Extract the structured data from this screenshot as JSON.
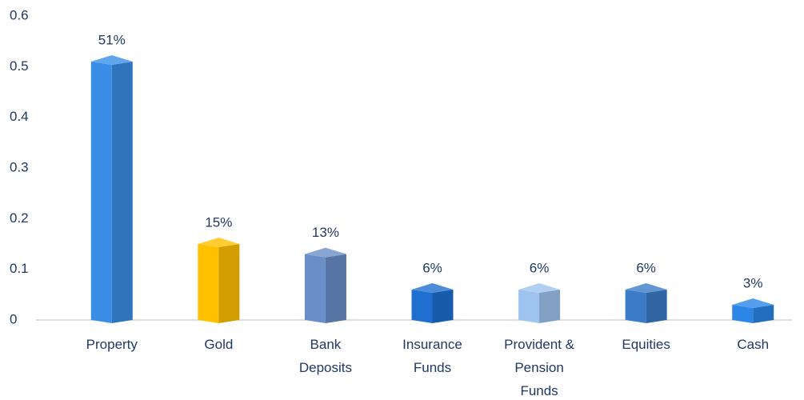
{
  "chart_data": {
    "type": "bar3d",
    "categories": [
      "Property",
      "Gold",
      "Bank Deposits",
      "Insurance Funds",
      "Provident & Pension Funds",
      "Equities",
      "Cash"
    ],
    "values": [
      0.51,
      0.15,
      0.13,
      0.06,
      0.06,
      0.06,
      0.03
    ],
    "value_labels": [
      "51%",
      "15%",
      "13%",
      "6%",
      "6%",
      "6%",
      "3%"
    ],
    "colors": [
      "#3a8ee8",
      "#ffc000",
      "#6a8fc8",
      "#1f6fd0",
      "#9dc3ee",
      "#3b7cc8",
      "#2b86e8"
    ],
    "ylim": [
      0,
      0.6
    ],
    "yticks": [
      0,
      0.1,
      0.2,
      0.3,
      0.4,
      0.5,
      0.6
    ],
    "grid": false
  }
}
